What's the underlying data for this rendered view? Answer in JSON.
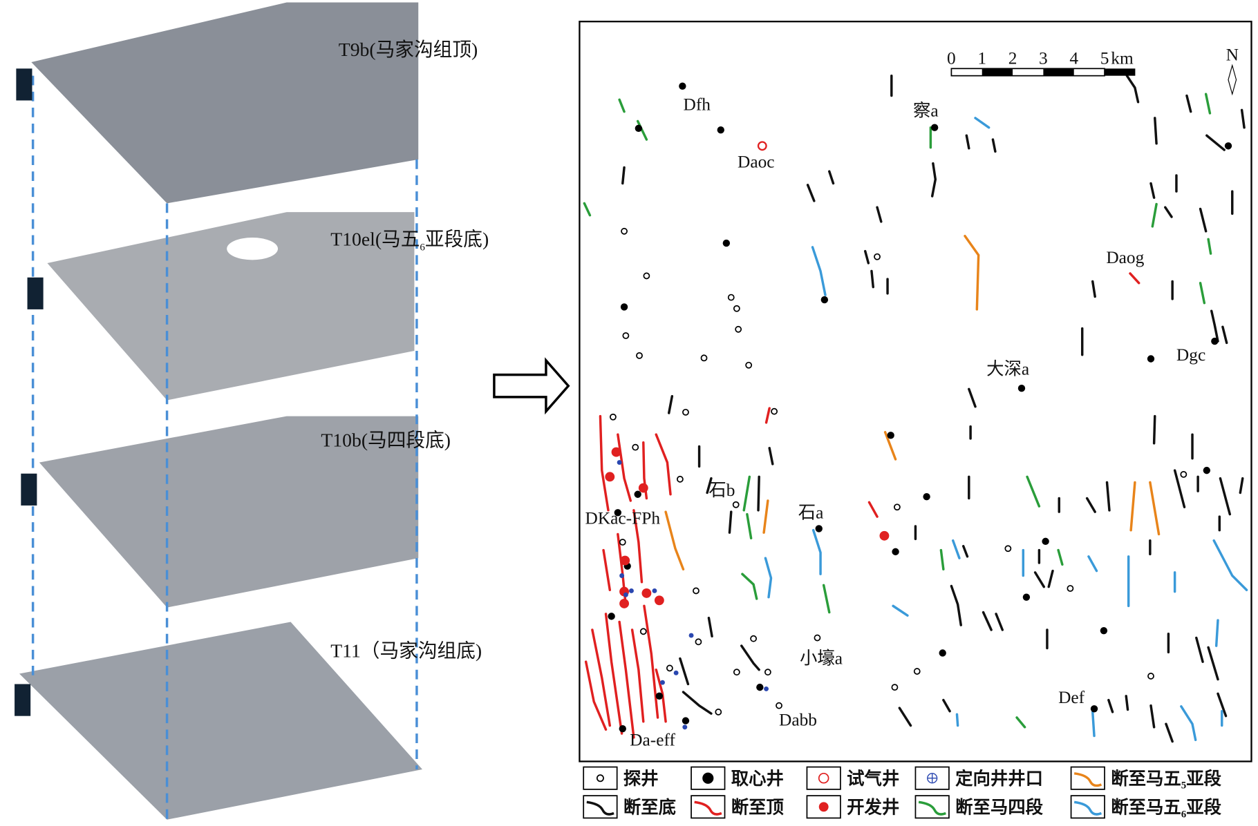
{
  "layers": [
    {
      "text": "T9b(马家沟组顶)"
    },
    {
      "text": "T10el(马五",
      "sub": "6",
      "tail": "亚段底)"
    },
    {
      "text": "T10b(马四段底)"
    },
    {
      "text": "T11（马家沟组底)"
    }
  ],
  "scale_bar": {
    "ticks": [
      "0",
      "1",
      "2",
      "3",
      "4",
      "5"
    ],
    "unit": "km"
  },
  "north": "N",
  "wells": [
    "Dfh",
    "Daoc",
    "察a",
    "Daog",
    "Dgc",
    "大深a",
    "石b",
    "石a",
    "DKac-FPh",
    "小壕a",
    "Dabb",
    "Da-eff",
    "Def"
  ],
  "legend": [
    {
      "text": "探井"
    },
    {
      "text": "取心井"
    },
    {
      "text": "试气井"
    },
    {
      "text": "定向井井口"
    },
    {
      "text": "断至马五",
      "sub": "5",
      "tail": "亚段"
    },
    {
      "text": "断至底"
    },
    {
      "text": "断至顶"
    },
    {
      "text": "开发井"
    },
    {
      "text": "断至马四段"
    },
    {
      "text": "断至马五",
      "sub": "6",
      "tail": "亚段"
    }
  ]
}
